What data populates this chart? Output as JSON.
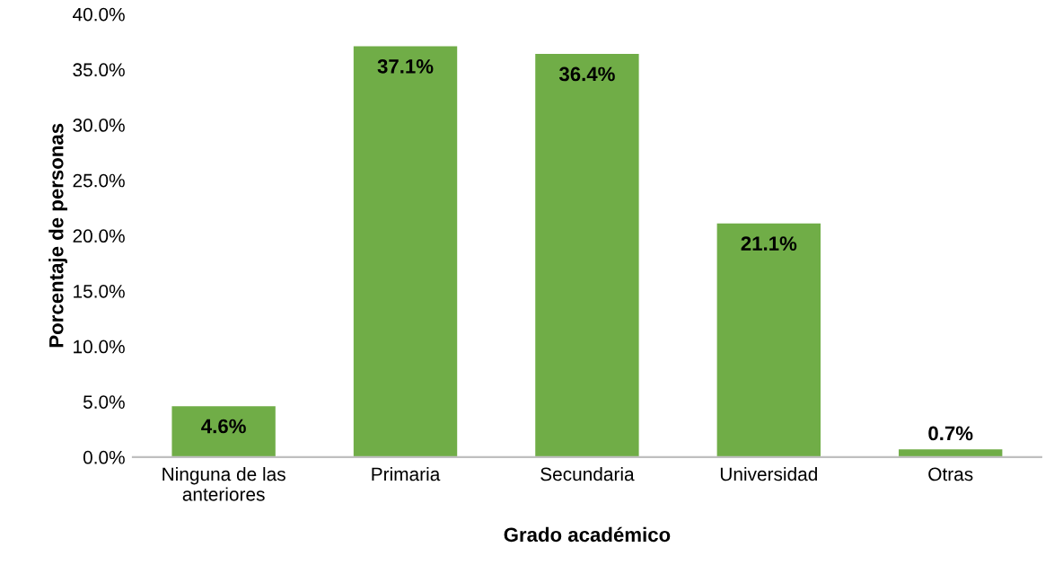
{
  "chart_data": {
    "type": "bar",
    "xlabel": "Grado académico",
    "ylabel": "Porcentaje de personas",
    "categories": [
      "Ninguna de las\nanteriores",
      "Primaria",
      "Secundaria",
      "Universidad",
      "Otras"
    ],
    "values": [
      4.6,
      37.1,
      36.4,
      21.1,
      0.7
    ],
    "value_labels": [
      "4.6%",
      "37.1%",
      "36.4%",
      "21.1%",
      "0.7%"
    ],
    "color": "#70ad47",
    "ylim": [
      0,
      40
    ],
    "yticks": [
      {
        "value": 0,
        "label": "0.0%"
      },
      {
        "value": 5,
        "label": "5.0%"
      },
      {
        "value": 10,
        "label": "10.0%"
      },
      {
        "value": 15,
        "label": "15.0%"
      },
      {
        "value": 20,
        "label": "20.0%"
      },
      {
        "value": 25,
        "label": "25.0%"
      },
      {
        "value": 30,
        "label": "30.0%"
      },
      {
        "value": 35,
        "label": "35.0%"
      },
      {
        "value": 40,
        "label": "40.0%"
      }
    ],
    "grid": false,
    "legend": false
  }
}
